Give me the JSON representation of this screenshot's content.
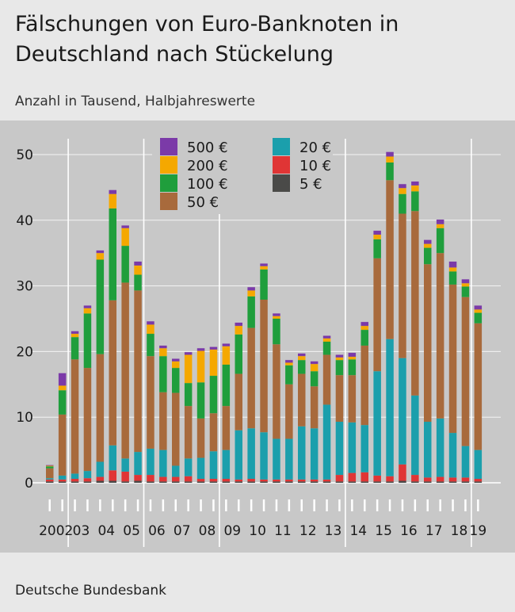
{
  "title": "Fälschungen von Euro-Banknoten in Deutschland nach Stückelung",
  "subtitle": "Anzahl in Tausend, Halbjahreswerte",
  "source": "Deutsche Bundesbank",
  "colors": {
    "background": "#e8e8e8",
    "plot_background": "#c8c8c8",
    "5": "#4a4a48",
    "10": "#e03535",
    "20": "#1b9fac",
    "50": "#a86a3c",
    "100": "#1f9e3c",
    "200": "#f5a800",
    "500": "#7b3aa8"
  },
  "chart_data": {
    "type": "bar",
    "stacked": true,
    "ylim": [
      0,
      50
    ],
    "yticks": [
      0,
      10,
      20,
      30,
      40,
      50
    ],
    "grid": "vertical lines at year boundaries",
    "legend_placement": "top-left inside plot",
    "year_labels": [
      "2002",
      "03",
      "04",
      "05",
      "06",
      "07",
      "08",
      "09",
      "10",
      "11",
      "12",
      "13",
      "14",
      "15",
      "16",
      "17",
      "18",
      "19"
    ],
    "categories": [
      "2002 H1",
      "2002 H2",
      "2003 H1",
      "2003 H2",
      "2004 H1",
      "2004 H2",
      "2005 H1",
      "2005 H2",
      "2006 H1",
      "2006 H2",
      "2007 H1",
      "2007 H2",
      "2008 H1",
      "2008 H2",
      "2009 H1",
      "2009 H2",
      "2010 H1",
      "2010 H2",
      "2011 H1",
      "2011 H2",
      "2012 H1",
      "2012 H2",
      "2013 H1",
      "2013 H2",
      "2014 H1",
      "2014 H2",
      "2015 H1",
      "2015 H2",
      "2016 H1",
      "2016 H2",
      "2017 H1",
      "2017 H2",
      "2018 H1",
      "2018 H2",
      "2019 H1"
    ],
    "series": [
      {
        "name": "5 €",
        "key": "5",
        "values": [
          0.2,
          0.2,
          0.2,
          0.2,
          0.3,
          0.3,
          0.2,
          0.3,
          0.2,
          0.2,
          0.2,
          0.2,
          0.2,
          0.2,
          0.2,
          0.2,
          0.2,
          0.2,
          0.2,
          0.2,
          0.2,
          0.2,
          0.2,
          0.2,
          0.2,
          0.2,
          0.2,
          0.2,
          0.3,
          0.2,
          0.2,
          0.2,
          0.2,
          0.2,
          0.2
        ]
      },
      {
        "name": "10 €",
        "key": "10",
        "values": [
          0.3,
          0.3,
          0.4,
          0.5,
          0.6,
          1.6,
          1.5,
          0.9,
          1.0,
          0.7,
          0.7,
          0.8,
          0.4,
          0.4,
          0.4,
          0.3,
          0.4,
          0.3,
          0.3,
          0.3,
          0.3,
          0.3,
          0.3,
          1.0,
          1.3,
          1.4,
          0.9,
          0.8,
          2.5,
          1.0,
          0.6,
          0.7,
          0.6,
          0.6,
          0.4
        ]
      },
      {
        "name": "20 €",
        "key": "20",
        "values": [
          0.2,
          0.6,
          0.8,
          1.1,
          2.3,
          3.8,
          2.0,
          3.5,
          4.0,
          4.1,
          1.7,
          2.7,
          3.2,
          4.2,
          4.4,
          7.5,
          7.7,
          7.2,
          6.2,
          6.2,
          8.1,
          7.8,
          11.4,
          8.1,
          7.7,
          7.2,
          15.9,
          20.9,
          16.2,
          12.1,
          8.5,
          8.9,
          6.8,
          4.8,
          4.4
        ]
      },
      {
        "name": "50 €",
        "key": "50",
        "values": [
          1.5,
          9.3,
          17.4,
          15.7,
          16.4,
          22.1,
          26.8,
          24.6,
          14.1,
          8.8,
          11.1,
          8.0,
          6.0,
          5.8,
          6.7,
          8.6,
          15.3,
          20.2,
          14.4,
          8.3,
          8.0,
          6.4,
          7.6,
          7.1,
          7.2,
          12.1,
          17.2,
          24.2,
          22.0,
          28.1,
          24.0,
          25.2,
          22.6,
          22.7,
          19.3
        ]
      },
      {
        "name": "100 €",
        "key": "100",
        "values": [
          0.3,
          3.7,
          3.4,
          8.3,
          14.4,
          14.0,
          5.6,
          2.4,
          3.4,
          5.5,
          3.8,
          3.5,
          5.5,
          5.7,
          6.3,
          6.0,
          4.8,
          4.6,
          3.9,
          2.9,
          2.1,
          2.3,
          2.0,
          2.3,
          2.4,
          2.4,
          2.9,
          2.7,
          3.0,
          3.0,
          2.5,
          3.8,
          2.0,
          1.6,
          1.6
        ]
      },
      {
        "name": "200 €",
        "key": "200",
        "values": [
          0.1,
          0.7,
          0.5,
          0.8,
          1.0,
          2.2,
          2.7,
          1.4,
          1.4,
          1.2,
          1.0,
          4.3,
          4.8,
          4.0,
          2.8,
          1.3,
          0.9,
          0.5,
          0.4,
          0.4,
          0.6,
          1.1,
          0.5,
          0.4,
          0.4,
          0.6,
          0.7,
          0.9,
          0.9,
          0.9,
          0.6,
          0.6,
          0.6,
          0.5,
          0.5
        ]
      },
      {
        "name": "500 €",
        "key": "500",
        "values": [
          0.1,
          1.9,
          0.4,
          0.4,
          0.4,
          0.6,
          0.4,
          0.6,
          0.5,
          0.4,
          0.4,
          0.4,
          0.4,
          0.4,
          0.4,
          0.5,
          0.5,
          0.4,
          0.4,
          0.4,
          0.4,
          0.4,
          0.4,
          0.4,
          0.6,
          0.6,
          0.6,
          0.7,
          0.6,
          0.6,
          0.6,
          0.7,
          0.9,
          0.6,
          0.6
        ]
      }
    ]
  }
}
